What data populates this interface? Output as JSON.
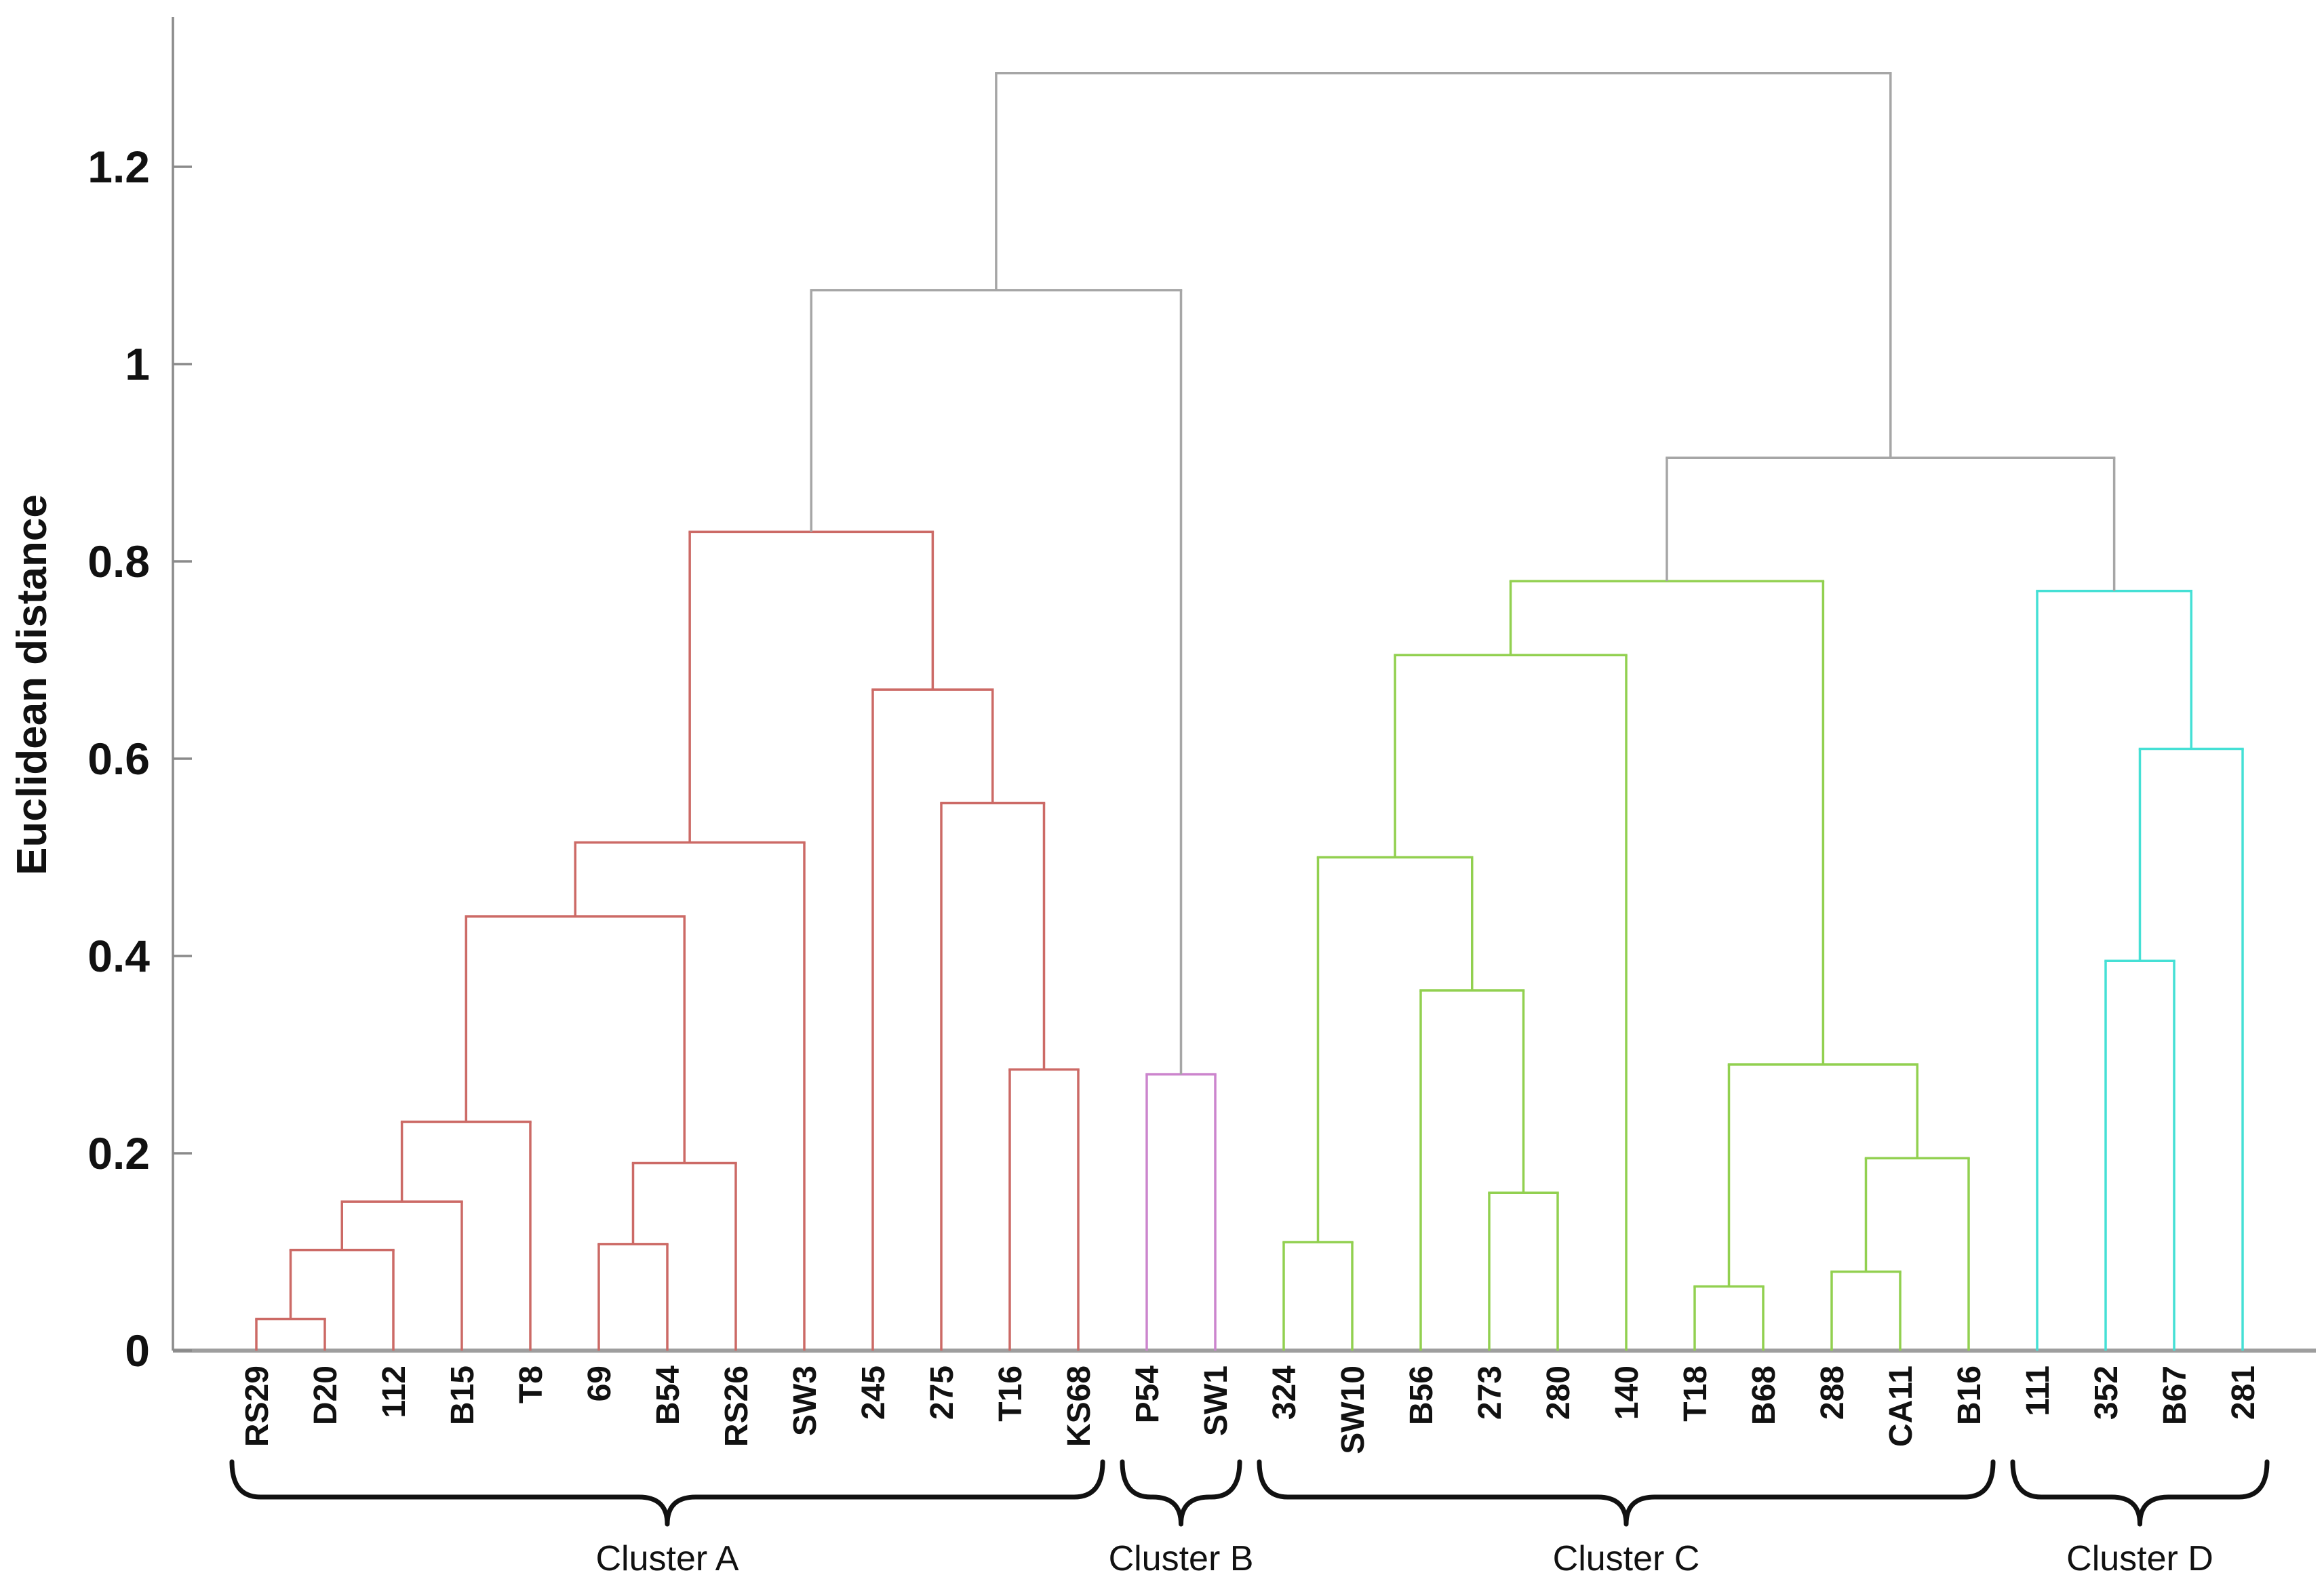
{
  "figure": {
    "ylabel": "Euclidean distance",
    "background": "#ffffff"
  },
  "chart_data": {
    "type": "dendrogram",
    "title": "",
    "ylabel": "Euclidean distance",
    "ylim": [
      0,
      1.35
    ],
    "y_axis": {
      "tick_values": [
        0,
        0.2,
        0.4,
        0.6,
        0.8,
        1,
        1.2
      ],
      "tick_labels": [
        "0",
        "0.2",
        "0.4",
        "0.6",
        "0.8",
        "1",
        "1.2"
      ]
    },
    "leaves": [
      "RS29",
      "D20",
      "112",
      "B15",
      "T8",
      "69",
      "B54",
      "RS26",
      "SW3",
      "245",
      "275",
      "T16",
      "KS68",
      "P54",
      "SW1",
      "324",
      "SW10",
      "B56",
      "273",
      "280",
      "140",
      "T18",
      "B68",
      "288",
      "CA11",
      "B16",
      "111",
      "352",
      "B67",
      "281"
    ],
    "clusters": [
      {
        "name": "Cluster A",
        "color_key": "red",
        "first_leaf": 0,
        "last_leaf": 12
      },
      {
        "name": "Cluster B",
        "color_key": "magenta",
        "first_leaf": 13,
        "last_leaf": 14
      },
      {
        "name": "Cluster C",
        "color_key": "green",
        "first_leaf": 15,
        "last_leaf": 25
      },
      {
        "name": "Cluster D",
        "color_key": "cyan",
        "first_leaf": 26,
        "last_leaf": 29
      }
    ],
    "colors": {
      "red": "#cc6a66",
      "magenta": "#cc85cd",
      "green": "#92d050",
      "cyan": "#45e0d5",
      "gray": "#a6a6a6",
      "axis": "#8a8a8a",
      "baseline": "#9e9e9e",
      "brace": "#111111"
    },
    "merges": [
      {
        "id": "M0",
        "a": "L0",
        "b": "L1",
        "height": 0.032,
        "color_key": "red"
      },
      {
        "id": "M1",
        "a": "M0",
        "b": "L2",
        "height": 0.102,
        "color_key": "red"
      },
      {
        "id": "M2",
        "a": "M1",
        "b": "L3",
        "height": 0.151,
        "color_key": "red"
      },
      {
        "id": "M3",
        "a": "M2",
        "b": "L4",
        "height": 0.232,
        "color_key": "red"
      },
      {
        "id": "M4",
        "a": "L5",
        "b": "L6",
        "height": 0.108,
        "color_key": "red"
      },
      {
        "id": "M5",
        "a": "M4",
        "b": "L7",
        "height": 0.19,
        "color_key": "red"
      },
      {
        "id": "M6",
        "a": "M3",
        "b": "M5",
        "height": 0.44,
        "color_key": "red"
      },
      {
        "id": "M7",
        "a": "M6",
        "b": "L8",
        "height": 0.515,
        "color_key": "red"
      },
      {
        "id": "M8",
        "a": "L11",
        "b": "L12",
        "height": 0.285,
        "color_key": "red"
      },
      {
        "id": "M9",
        "a": "L10",
        "b": "M8",
        "height": 0.555,
        "color_key": "red"
      },
      {
        "id": "M10",
        "a": "L9",
        "b": "M9",
        "height": 0.67,
        "color_key": "red"
      },
      {
        "id": "M11",
        "a": "M7",
        "b": "M10",
        "height": 0.83,
        "color_key": "red"
      },
      {
        "id": "M12",
        "a": "L13",
        "b": "L14",
        "height": 0.28,
        "color_key": "magenta"
      },
      {
        "id": "M13",
        "a": "L15",
        "b": "L16",
        "height": 0.11,
        "color_key": "green"
      },
      {
        "id": "M14",
        "a": "L18",
        "b": "L19",
        "height": 0.16,
        "color_key": "green"
      },
      {
        "id": "M15",
        "a": "L17",
        "b": "M14",
        "height": 0.365,
        "color_key": "green"
      },
      {
        "id": "M16",
        "a": "M13",
        "b": "M15",
        "height": 0.5,
        "color_key": "green"
      },
      {
        "id": "M17",
        "a": "M16",
        "b": "L20",
        "height": 0.705,
        "color_key": "green"
      },
      {
        "id": "M18",
        "a": "L21",
        "b": "L22",
        "height": 0.065,
        "color_key": "green"
      },
      {
        "id": "M19",
        "a": "L23",
        "b": "L24",
        "height": 0.08,
        "color_key": "green"
      },
      {
        "id": "M20",
        "a": "M19",
        "b": "L25",
        "height": 0.195,
        "color_key": "green"
      },
      {
        "id": "M21",
        "a": "M18",
        "b": "M20",
        "height": 0.29,
        "color_key": "green"
      },
      {
        "id": "M22",
        "a": "M17",
        "b": "M21",
        "height": 0.78,
        "color_key": "green"
      },
      {
        "id": "M23",
        "a": "L27",
        "b": "L28",
        "height": 0.395,
        "color_key": "cyan"
      },
      {
        "id": "M24",
        "a": "M23",
        "b": "L29",
        "height": 0.61,
        "color_key": "cyan"
      },
      {
        "id": "M25",
        "a": "L26",
        "b": "M24",
        "height": 0.77,
        "color_key": "cyan"
      },
      {
        "id": "M26",
        "a": "M11",
        "b": "M12",
        "height": 1.075,
        "color_key": "gray"
      },
      {
        "id": "M27",
        "a": "M22",
        "b": "M25",
        "height": 0.905,
        "color_key": "gray"
      },
      {
        "id": "M28",
        "a": "M26",
        "b": "M27",
        "height": 1.295,
        "color_key": "gray"
      }
    ]
  }
}
